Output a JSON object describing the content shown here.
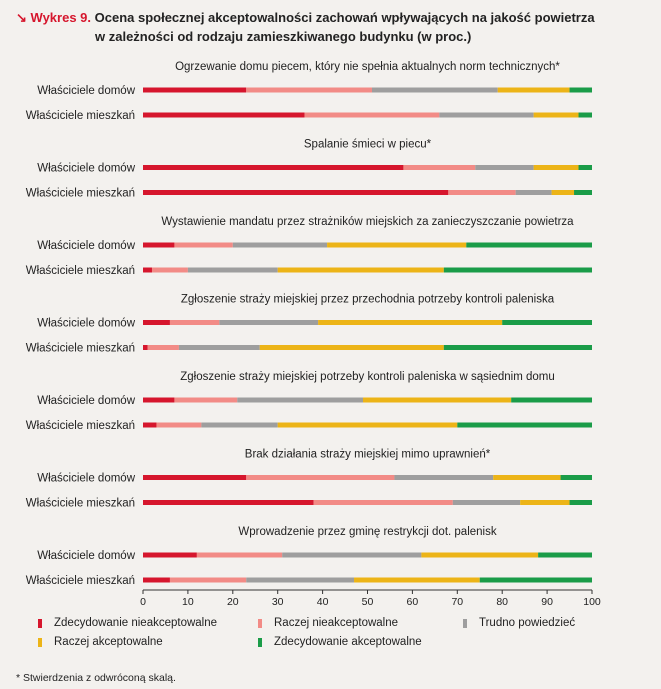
{
  "title": {
    "arrow": "↘",
    "label": "Wykres 9.",
    "line1": "Ocena społecznej akceptowalności zachowań wpływających na jakość powietrza",
    "line2": "w zależności od rodzaju zamieszkiwanego budynku (w proc.)"
  },
  "chart_data": {
    "type": "bar",
    "orientation": "horizontal",
    "stacked": true,
    "xlim": [
      0,
      100
    ],
    "xticks": [
      0,
      10,
      20,
      30,
      40,
      50,
      60,
      70,
      80,
      90,
      100
    ],
    "series": [
      {
        "name": "Zdecydowanie nieakceptowalne",
        "color": "#d6162d"
      },
      {
        "name": "Raczej nieakceptowalne",
        "color": "#f28b86"
      },
      {
        "name": "Trudno powiedzieć",
        "color": "#9e9e9e"
      },
      {
        "name": "Raczej akceptowalne",
        "color": "#ecb417"
      },
      {
        "name": "Zdecydowanie akceptowalne",
        "color": "#1a9c48"
      }
    ],
    "groups": [
      {
        "title": "Ogrzewanie domu piecem, który nie spełnia aktualnych norm technicznych*",
        "rows": [
          {
            "label": "Właściciele domów",
            "values": [
              23,
              28,
              28,
              16,
              5
            ]
          },
          {
            "label": "Właściciele mieszkań",
            "values": [
              36,
              30,
              21,
              10,
              3
            ]
          }
        ]
      },
      {
        "title": "Spalanie śmieci w piecu*",
        "rows": [
          {
            "label": "Właściciele domów",
            "values": [
              58,
              16,
              13,
              10,
              3
            ]
          },
          {
            "label": "Właściciele mieszkań",
            "values": [
              68,
              15,
              8,
              5,
              4
            ]
          }
        ]
      },
      {
        "title": "Wystawienie mandatu przez strażników miejskich za zanieczyszczanie powietrza",
        "rows": [
          {
            "label": "Właściciele domów",
            "values": [
              7,
              13,
              21,
              31,
              28
            ]
          },
          {
            "label": "Właściciele mieszkań",
            "values": [
              2,
              8,
              20,
              37,
              33
            ]
          }
        ]
      },
      {
        "title": "Zgłoszenie straży miejskiej przez przechodnia potrzeby kontroli paleniska",
        "rows": [
          {
            "label": "Właściciele domów",
            "values": [
              6,
              11,
              22,
              41,
              20
            ]
          },
          {
            "label": "Właściciele mieszkań",
            "values": [
              1,
              7,
              18,
              41,
              33
            ]
          }
        ]
      },
      {
        "title": "Zgłoszenie straży miejskiej potrzeby kontroli paleniska w sąsiednim domu",
        "rows": [
          {
            "label": "Właściciele domów",
            "values": [
              7,
              14,
              28,
              33,
              18
            ]
          },
          {
            "label": "Właściciele mieszkań",
            "values": [
              3,
              10,
              17,
              40,
              30
            ]
          }
        ]
      },
      {
        "title": "Brak działania straży miejskiej mimo uprawnień*",
        "rows": [
          {
            "label": "Właściciele domów",
            "values": [
              23,
              33,
              22,
              15,
              7
            ]
          },
          {
            "label": "Właściciele mieszkań",
            "values": [
              38,
              31,
              15,
              11,
              5
            ]
          }
        ]
      },
      {
        "title": "Wprowadzenie przez gminę restrykcji dot. palenisk",
        "rows": [
          {
            "label": "Właściciele domów",
            "values": [
              12,
              19,
              31,
              26,
              12
            ]
          },
          {
            "label": "Właściciele mieszkań",
            "values": [
              6,
              17,
              24,
              28,
              25
            ]
          }
        ]
      }
    ]
  },
  "footnote": "* Stwierdzenia z odwróconą skalą."
}
